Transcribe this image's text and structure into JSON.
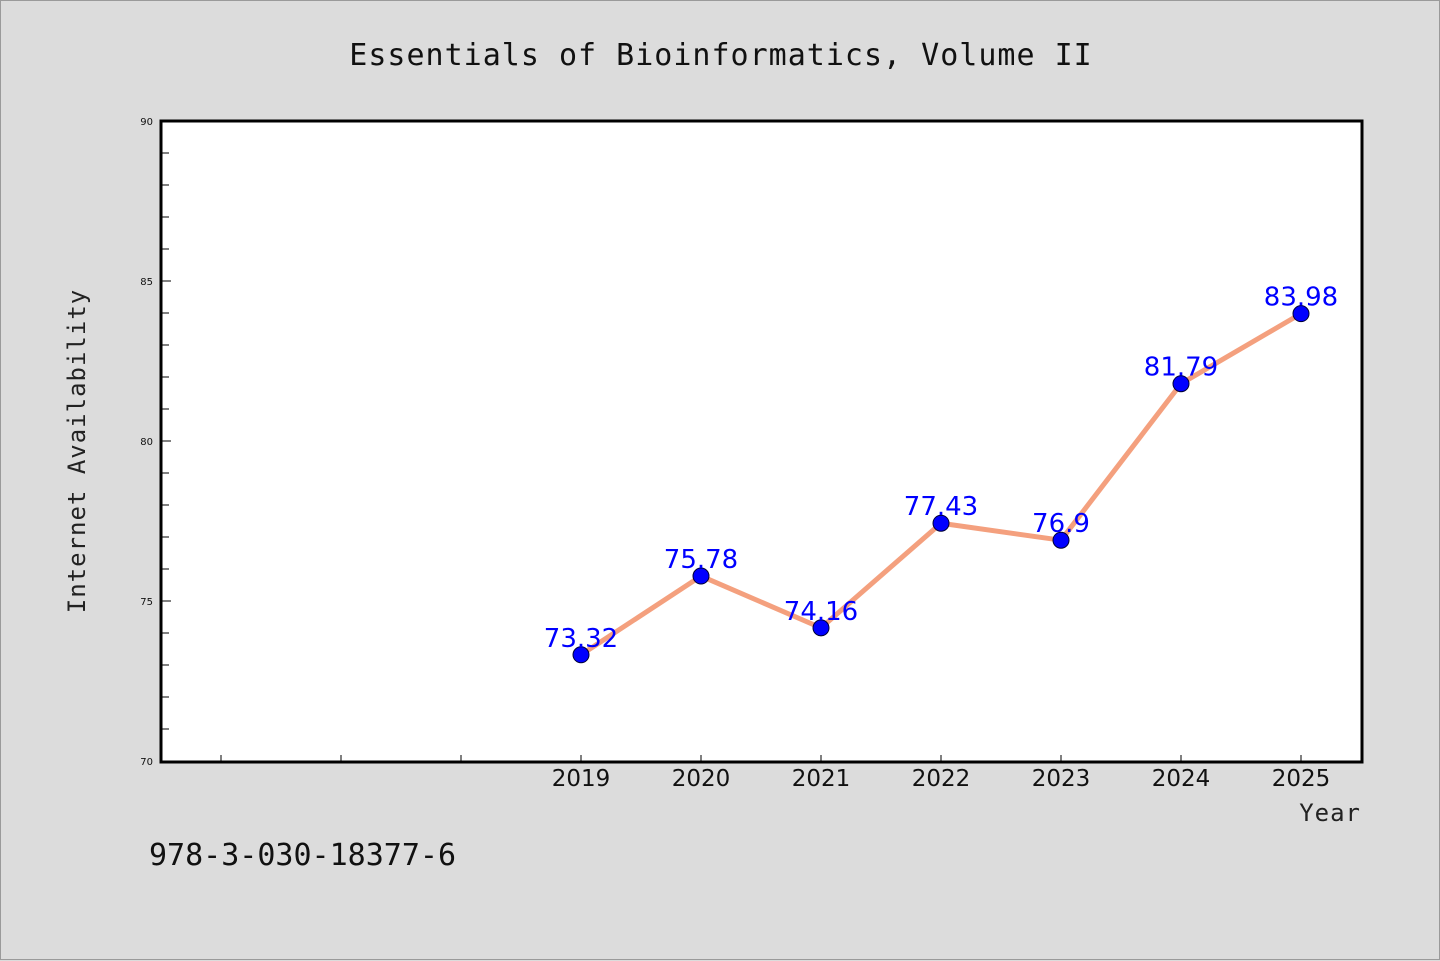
{
  "chart_data": {
    "type": "line",
    "title": "Essentials of Bioinformatics, Volume II",
    "xlabel": "Year",
    "ylabel": "Internet Availability",
    "categories": [
      "2019",
      "2020",
      "2021",
      "2022",
      "2023",
      "2024",
      "2025"
    ],
    "series": [
      {
        "values": [
          73.32,
          75.78,
          74.16,
          77.43,
          76.9,
          81.79,
          83.98
        ],
        "data_labels": [
          "73.32",
          "75.78",
          "74.16",
          "77.43",
          "76.9",
          "81.79",
          "83.98"
        ],
        "line_color": "#f4a07e",
        "marker_color": "#0000ff"
      }
    ],
    "ylim": [
      70,
      90
    ],
    "yticks": [
      "70",
      "75",
      "80",
      "85",
      "90"
    ],
    "grid": false,
    "legend": "none"
  },
  "footer": {
    "isbn": "978-3-030-18377-6"
  },
  "colors": {
    "background": "#dcdcdc",
    "plot_background": "#ffffff",
    "line": "#f4a07e",
    "marker": "#0000ff",
    "data_label": "#0000ff"
  }
}
